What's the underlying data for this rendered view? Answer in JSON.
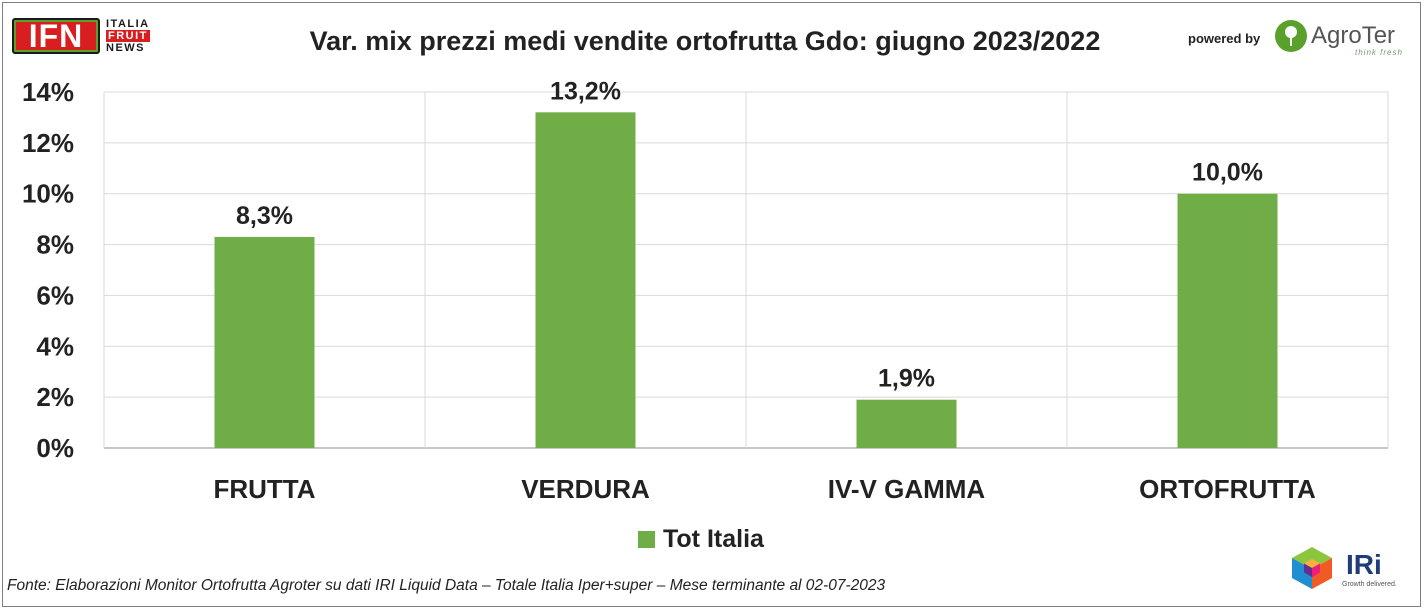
{
  "header": {
    "ifn_logo_letters": "IFN",
    "ifn_logo_words": [
      "ITALIA",
      "FRUIT",
      "NEWS"
    ],
    "powered_by": "powered by",
    "agroter_name": "AgroTer",
    "agroter_tagline": "think fresh"
  },
  "chart_data": {
    "type": "bar",
    "title": "Var. mix prezzi medi vendite ortofrutta Gdo: giugno 2023/2022",
    "categories": [
      "FRUTTA",
      "VERDURA",
      "IV-V GAMMA",
      "ORTOFRUTTA"
    ],
    "series": [
      {
        "name": "Tot Italia",
        "values": [
          8.3,
          13.2,
          1.9,
          10.0
        ],
        "color": "#70ad47"
      }
    ],
    "data_labels": [
      "8,3%",
      "13,2%",
      "1,9%",
      "10,0%"
    ],
    "y_ticks": [
      "0%",
      "2%",
      "4%",
      "6%",
      "8%",
      "10%",
      "12%",
      "14%"
    ],
    "ylim": [
      0,
      14
    ],
    "xlabel": "",
    "ylabel": "",
    "grid": true,
    "legend_position": "bottom"
  },
  "source": "Fonte: Elaborazioni Monitor Ortofrutta Agroter su dati IRI Liquid Data – Totale Italia Iper+super – Mese terminante al 02-07-2023",
  "footer": {
    "iri_name": "IRi",
    "iri_tagline": "Growth delivered."
  },
  "colors": {
    "bar": "#70ad47",
    "gridline": "#d9d9d9",
    "ifn_red": "#d81e1e",
    "agroter_green": "#5aa02c",
    "iri_blue": "#1f3d7a"
  }
}
